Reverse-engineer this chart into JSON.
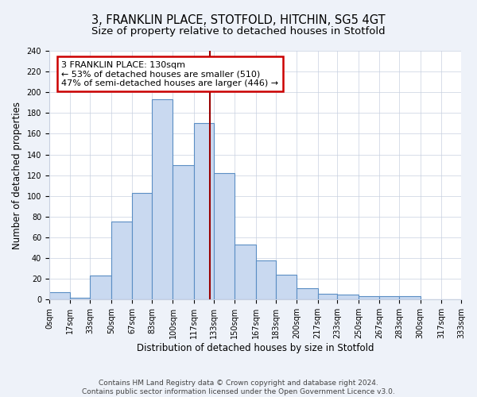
{
  "title": "3, FRANKLIN PLACE, STOTFOLD, HITCHIN, SG5 4GT",
  "subtitle": "Size of property relative to detached houses in Stotfold",
  "xlabel": "Distribution of detached houses by size in Stotfold",
  "ylabel": "Number of detached properties",
  "bin_edges": [
    0,
    17,
    33,
    50,
    67,
    83,
    100,
    117,
    133,
    150,
    167,
    183,
    200,
    217,
    233,
    250,
    267,
    283,
    300,
    317,
    333
  ],
  "bin_counts": [
    7,
    2,
    23,
    75,
    103,
    193,
    130,
    170,
    122,
    53,
    38,
    24,
    11,
    6,
    5,
    3,
    3,
    3,
    0,
    0
  ],
  "bar_facecolor": "#c9d9f0",
  "bar_edgecolor": "#5b8ec4",
  "bar_linewidth": 0.8,
  "vline_x": 130,
  "vline_color": "#990000",
  "vline_linewidth": 1.5,
  "annotation_text": "3 FRANKLIN PLACE: 130sqm\n← 53% of detached houses are smaller (510)\n47% of semi-detached houses are larger (446) →",
  "annotation_boxcolor": "white",
  "annotation_edgecolor": "#cc0000",
  "ylim": [
    0,
    240
  ],
  "tick_labels": [
    "0sqm",
    "17sqm",
    "33sqm",
    "50sqm",
    "67sqm",
    "83sqm",
    "100sqm",
    "117sqm",
    "133sqm",
    "150sqm",
    "167sqm",
    "183sqm",
    "200sqm",
    "217sqm",
    "233sqm",
    "250sqm",
    "267sqm",
    "283sqm",
    "300sqm",
    "317sqm",
    "333sqm"
  ],
  "yticks": [
    0,
    20,
    40,
    60,
    80,
    100,
    120,
    140,
    160,
    180,
    200,
    220,
    240
  ],
  "footer": "Contains HM Land Registry data © Crown copyright and database right 2024.\nContains public sector information licensed under the Open Government Licence v3.0.",
  "bg_color": "#eef2f9",
  "plot_bg_color": "#ffffff",
  "grid_color": "#c8d0e0",
  "title_fontsize": 10.5,
  "subtitle_fontsize": 9.5,
  "axis_label_fontsize": 8.5,
  "tick_fontsize": 7.0,
  "footer_fontsize": 6.5,
  "annotation_fontsize": 8.0
}
